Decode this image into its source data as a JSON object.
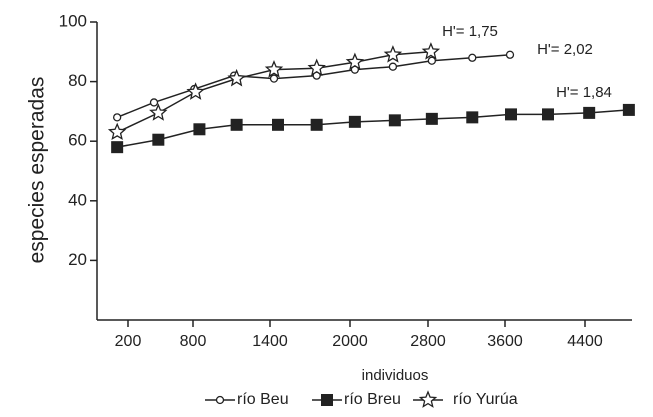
{
  "chart_data": {
    "type": "line",
    "y_label": "especies esperadas",
    "x_label": "individuos",
    "xlim": [
      0,
      4850
    ],
    "xticks": [
      200,
      800,
      1400,
      2000,
      2800,
      3600,
      4400
    ],
    "ylim": [
      0,
      100
    ],
    "yticks": [
      20,
      40,
      60,
      80,
      100
    ],
    "series": [
      {
        "name": "río Beu",
        "color": "#222222",
        "marker": "circle",
        "x": [
          130,
          440,
          810,
          1120,
          1430,
          1750,
          2050,
          2440,
          2840,
          3260,
          3650
        ],
        "values": [
          68,
          73,
          77.5,
          82,
          81,
          82,
          84,
          85,
          87,
          88,
          89
        ]
      },
      {
        "name": "río Breu",
        "color": "#222222",
        "marker": "square",
        "x": [
          130,
          480,
          850,
          1140,
          1460,
          1750,
          2050,
          2460,
          2840,
          3260,
          3660,
          4030,
          4440,
          4820
        ],
        "values": [
          58,
          60.5,
          64,
          65.5,
          65.5,
          65.5,
          66.5,
          67,
          67.5,
          68,
          69,
          69,
          69.5,
          70.5
        ]
      },
      {
        "name": "río Yurúa",
        "color": "#222222",
        "marker": "star",
        "x": [
          130,
          480,
          820,
          1140,
          1430,
          1750,
          2050,
          2440,
          2830
        ],
        "values": [
          63,
          69.5,
          76.5,
          81,
          84,
          84.5,
          86.5,
          89,
          90
        ]
      }
    ],
    "annotations": [
      "H'= 1,75",
      "H'= 2,02",
      "H'= 1,84"
    ]
  }
}
